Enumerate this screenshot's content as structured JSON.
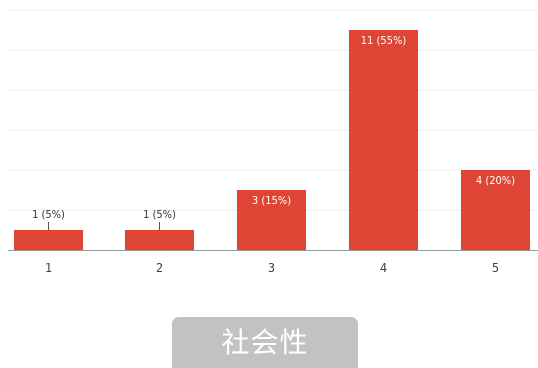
{
  "chart_data": {
    "type": "bar",
    "categories": [
      "1",
      "2",
      "3",
      "4",
      "5"
    ],
    "values": [
      1,
      1,
      3,
      11,
      4
    ],
    "data_labels": [
      "1 (5%)",
      "1 (5%)",
      "3 (15%)",
      "11 (55%)",
      "4 (20%)"
    ],
    "ylim": [
      0,
      12
    ],
    "grid": true,
    "bar_color": "#de4535",
    "grid_color": "#eeeeee",
    "axis_color": "#999999"
  },
  "caption": {
    "title": "社会性"
  },
  "colors": {
    "caption_background": "#c2c2c2",
    "caption_text": "#ffffff"
  }
}
